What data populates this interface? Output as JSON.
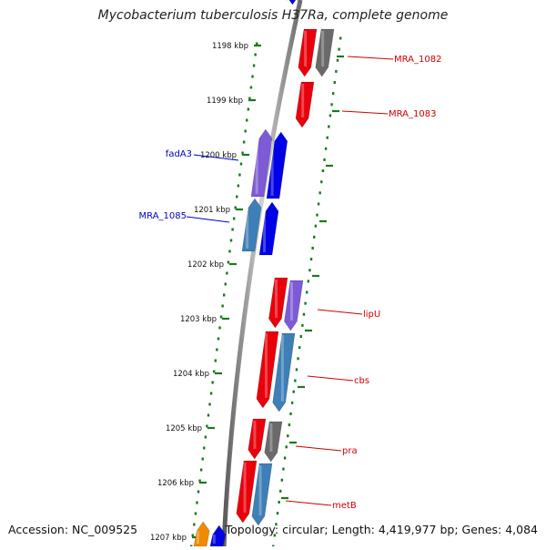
{
  "title": "Mycobacterium tuberculosis H37Ra, complete genome",
  "accession": "Accession: NC_009525",
  "topology": "Topology: circular; Length: 4,419,977 bp; Genes: 4,084",
  "ticks": [
    "1198 kbp",
    "1199 kbp",
    "1200 kbp",
    "1201 kbp",
    "1202 kbp",
    "1203 kbp",
    "1204 kbp",
    "1205 kbp",
    "1206 kbp",
    "1207 kbp"
  ],
  "colors": {
    "red": "#e8000b",
    "blue": "#0000e6",
    "purple": "#7d5ad6",
    "steel": "#3d7fb6",
    "gray": "#6a6a6a",
    "orange": "#f08a00",
    "green": "#1a7a1a",
    "label_forward": "#d00000",
    "label_reverse": "#0000c8"
  },
  "labels_right": [
    "MRA_1082",
    "MRA_1083",
    "lipU",
    "cbs",
    "pra",
    "metB"
  ],
  "labels_left": [
    "fadA3",
    "MRA_1085"
  ]
}
